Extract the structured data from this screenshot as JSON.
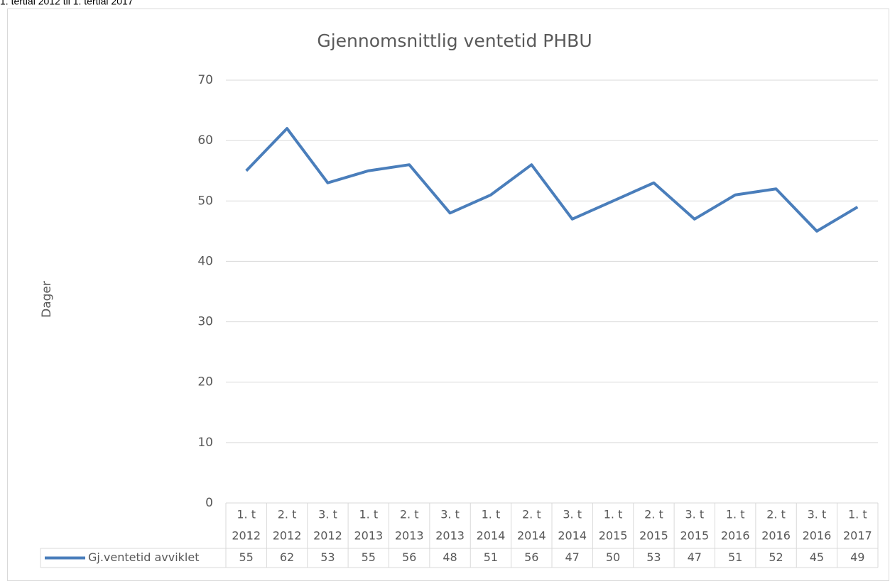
{
  "note_top": "1. tertial 2012 til 1. tertial 2017",
  "chart_data": {
    "type": "line",
    "title": "Gjennomsnittlig ventetid PHBU",
    "y_label": "Dager",
    "categories": [
      [
        "1. t",
        "2012"
      ],
      [
        "2. t",
        "2012"
      ],
      [
        "3. t",
        "2012"
      ],
      [
        "1. t",
        "2013"
      ],
      [
        "2. t",
        "2013"
      ],
      [
        "3. t",
        "2013"
      ],
      [
        "1. t",
        "2014"
      ],
      [
        "2. t",
        "2014"
      ],
      [
        "3. t",
        "2014"
      ],
      [
        "1. t",
        "2015"
      ],
      [
        "2. t",
        "2015"
      ],
      [
        "3. t",
        "2015"
      ],
      [
        "1. t",
        "2016"
      ],
      [
        "2. t",
        "2016"
      ],
      [
        "3. t",
        "2016"
      ],
      [
        "1. t",
        "2017"
      ]
    ],
    "series": [
      {
        "name": "Gj.ventetid avviklet",
        "color": "#4a7ebb",
        "values": [
          55,
          62,
          53,
          55,
          56,
          48,
          51,
          56,
          47,
          50,
          53,
          47,
          51,
          52,
          45,
          49
        ]
      }
    ],
    "ylim": [
      0,
      70
    ],
    "yticks": [
      0,
      10,
      20,
      30,
      40,
      50,
      60,
      70
    ],
    "grid": true,
    "data_table": true
  }
}
